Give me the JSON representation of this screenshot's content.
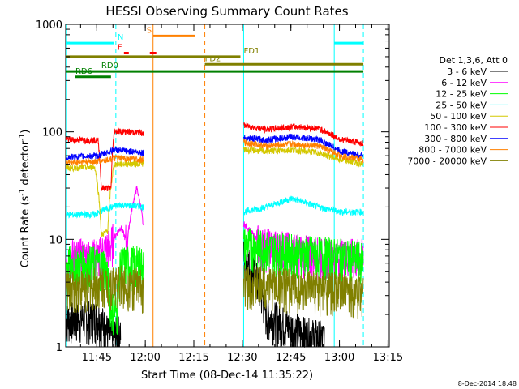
{
  "chart_data": {
    "type": "line",
    "title": "HESSI Observing Summary Count Rates",
    "xlabel": "Start Time (08-Dec-14 11:35:22)",
    "ylabel_main": "Count Rate (s",
    "ylabel_sup1": "-1",
    "ylabel_mid": " detector",
    "ylabel_sup2": "-1",
    "ylabel_end": ")",
    "yscale": "log",
    "xlim_minutes": [
      0,
      100
    ],
    "ylim": [
      1,
      1000
    ],
    "x_ticks": [
      {
        "label": "11:45",
        "minutes": 9.6
      },
      {
        "label": "12:00",
        "minutes": 24.6
      },
      {
        "label": "12:15",
        "minutes": 39.6
      },
      {
        "label": "12:30",
        "minutes": 54.6
      },
      {
        "label": "12:45",
        "minutes": 69.6
      },
      {
        "label": "13:00",
        "minutes": 84.6
      },
      {
        "label": "13:15",
        "minutes": 99.6
      }
    ],
    "y_ticks": [
      {
        "label": "1",
        "value": 1
      },
      {
        "label": "10",
        "value": 10
      },
      {
        "label": "100",
        "value": 100
      },
      {
        "label": "1000",
        "value": 1000
      }
    ],
    "legend_title": "Det 1,3,6, Att 0",
    "legend_position": "right",
    "series": [
      {
        "name": "3 - 6 keV",
        "color": "#000000",
        "segments": [
          [
            [
              0,
              1.8
            ],
            [
              10,
              1.9
            ],
            [
              14,
              1.2
            ],
            [
              17,
              1.4
            ]
          ],
          [
            [
              55,
              7
            ],
            [
              58,
              5
            ],
            [
              62,
              2
            ],
            [
              68,
              1.6
            ],
            [
              74,
              1.3
            ],
            [
              80,
              1.2
            ]
          ]
        ]
      },
      {
        "name": "6 - 12 keV",
        "color": "#ff00ff",
        "segments": [
          [
            [
              0,
              7
            ],
            [
              10,
              7
            ],
            [
              14,
              9
            ],
            [
              17,
              13
            ],
            [
              19,
              9
            ],
            [
              22,
              30
            ],
            [
              24,
              13
            ]
          ],
          [
            [
              55,
              14
            ],
            [
              60,
              9
            ],
            [
              70,
              8
            ],
            [
              80,
              7
            ],
            [
              92,
              7
            ]
          ]
        ]
      },
      {
        "name": "12 - 25 keV",
        "color": "#00ff00",
        "segments": [
          [
            [
              0,
              6
            ],
            [
              12,
              6
            ],
            [
              14,
              2.3
            ],
            [
              16,
              2.1
            ],
            [
              17,
              6
            ],
            [
              24,
              6
            ]
          ],
          [
            [
              55,
              9
            ],
            [
              65,
              8
            ],
            [
              75,
              7.5
            ],
            [
              85,
              7
            ],
            [
              92,
              6.5
            ]
          ]
        ]
      },
      {
        "name": "25 - 50 keV",
        "color": "#00ffff",
        "segments": [
          [
            [
              0,
              17
            ],
            [
              9,
              17
            ],
            [
              12,
              19
            ],
            [
              17,
              21
            ],
            [
              24,
              20
            ]
          ],
          [
            [
              55,
              18
            ],
            [
              62,
              20
            ],
            [
              70,
              24
            ],
            [
              78,
              20
            ],
            [
              85,
              18
            ],
            [
              92,
              18
            ]
          ]
        ]
      },
      {
        "name": "50 - 100 keV",
        "color": "#d4c800",
        "segments": [
          [
            [
              0,
              46
            ],
            [
              9,
              47
            ],
            [
              11,
              11
            ],
            [
              13,
              12
            ],
            [
              15,
              50
            ],
            [
              24,
              51
            ]
          ],
          [
            [
              55,
              68
            ],
            [
              62,
              66
            ],
            [
              70,
              68
            ],
            [
              78,
              64
            ],
            [
              85,
              55
            ],
            [
              92,
              50
            ]
          ]
        ]
      },
      {
        "name": "100 - 300 keV",
        "color": "#ff0000",
        "segments": [
          [
            [
              0,
              85
            ],
            [
              10,
              83
            ],
            [
              11,
              30
            ],
            [
              14,
              30
            ],
            [
              15,
              102
            ],
            [
              24,
              98
            ]
          ],
          [
            [
              55,
              115
            ],
            [
              62,
              105
            ],
            [
              70,
              112
            ],
            [
              78,
              108
            ],
            [
              85,
              85
            ],
            [
              92,
              78
            ]
          ]
        ]
      },
      {
        "name": "300 - 800 keV",
        "color": "#0000ff",
        "segments": [
          [
            [
              0,
              58
            ],
            [
              10,
              60
            ],
            [
              15,
              68
            ],
            [
              24,
              64
            ]
          ],
          [
            [
              55,
              88
            ],
            [
              62,
              84
            ],
            [
              70,
              90
            ],
            [
              78,
              85
            ],
            [
              85,
              66
            ],
            [
              92,
              60
            ]
          ]
        ]
      },
      {
        "name": "800 - 7000 keV",
        "color": "#ff8000",
        "segments": [
          [
            [
              0,
              52
            ],
            [
              10,
              53
            ],
            [
              15,
              57
            ],
            [
              24,
              55
            ]
          ],
          [
            [
              55,
              80
            ],
            [
              62,
              74
            ],
            [
              70,
              77
            ],
            [
              78,
              74
            ],
            [
              85,
              60
            ],
            [
              92,
              55
            ]
          ]
        ]
      },
      {
        "name": "7000 - 20000 keV",
        "color": "#808000",
        "segments": [
          [
            [
              0,
              3.5
            ],
            [
              10,
              3.8
            ],
            [
              17,
              4
            ],
            [
              24,
              3.6
            ]
          ],
          [
            [
              55,
              4
            ],
            [
              65,
              3.8
            ],
            [
              75,
              3.5
            ],
            [
              85,
              3.4
            ],
            [
              92,
              3.2
            ]
          ]
        ]
      }
    ],
    "flag_bars": [
      {
        "label": "N",
        "color": "#00ffff",
        "y": 670,
        "segments": [
          [
            0,
            15
          ],
          [
            83,
            92
          ]
        ],
        "label_at": 16
      },
      {
        "label": "S",
        "color": "#ff8000",
        "y": 780,
        "segments": [
          [
            27,
            40
          ]
        ],
        "label_at": 25
      },
      {
        "label": "F",
        "color": "#ff0000",
        "y": 540,
        "segments": [
          [
            18,
            19.5
          ],
          [
            26,
            28
          ]
        ],
        "label_at": 16
      },
      {
        "label": "FD1",
        "color": "#808000",
        "y": 500,
        "segments": [
          [
            0,
            54
          ]
        ],
        "label_at": 55
      },
      {
        "label": "FD2",
        "color": "#808000",
        "y": 425,
        "segments": [
          [
            43,
            92
          ]
        ],
        "label_at": 43
      },
      {
        "label": "RD0",
        "color": "#008000",
        "y": 365,
        "segments": [
          [
            0,
            92
          ]
        ],
        "label_at": 11
      },
      {
        "label": "RD6",
        "color": "#008000",
        "y": 325,
        "segments": [
          [
            3,
            14
          ]
        ],
        "label_at": 3
      }
    ],
    "vertical_lines": [
      {
        "minutes": 0.3,
        "color": "#00ffff",
        "style": "solid"
      },
      {
        "minutes": 15.5,
        "color": "#00ffff",
        "style": "dashed"
      },
      {
        "minutes": 27.0,
        "color": "#ff8000",
        "style": "solid"
      },
      {
        "minutes": 43.0,
        "color": "#ff8000",
        "style": "dashed"
      },
      {
        "minutes": 55.0,
        "color": "#00ffff",
        "style": "solid"
      },
      {
        "minutes": 83.0,
        "color": "#00ffff",
        "style": "solid"
      },
      {
        "minutes": 92.0,
        "color": "#00ffff",
        "style": "dashed"
      }
    ]
  },
  "footer": {
    "timestamp": "8-Dec-2014 18:48"
  }
}
